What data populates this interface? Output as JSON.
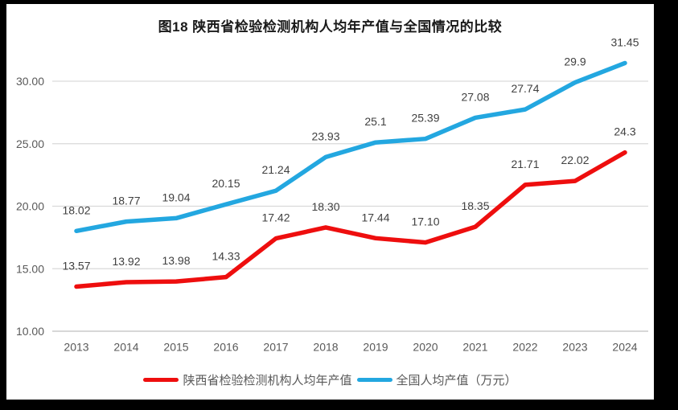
{
  "window": {
    "frame_color": "#000000",
    "panel_color": "#ffffff"
  },
  "chart_data": {
    "type": "line",
    "title": "图18 陕西省检验检测机构人均年产值与全国情况的比较",
    "categories": [
      "2013",
      "2014",
      "2015",
      "2016",
      "2017",
      "2018",
      "2019",
      "2020",
      "2021",
      "2022",
      "2023",
      "2024"
    ],
    "series": [
      {
        "name": "陕西省检验检测机构人均年产值",
        "color": "#ee0e0e",
        "values": [
          13.57,
          13.92,
          13.98,
          14.33,
          17.42,
          18.3,
          17.44,
          17.1,
          18.35,
          21.71,
          22.02,
          24.3
        ],
        "labels": [
          "13.57",
          "13.92",
          "13.98",
          "14.33",
          "17.42",
          "18.30",
          "17.44",
          "17.10",
          "18.35",
          "21.71",
          "22.02",
          "24.3"
        ]
      },
      {
        "name": "全国人均产值（万元）",
        "color": "#23a7e0",
        "values": [
          18.02,
          18.77,
          19.04,
          20.15,
          21.24,
          23.93,
          25.1,
          25.39,
          27.08,
          27.74,
          29.9,
          31.45
        ],
        "labels": [
          "18.02",
          "18.77",
          "19.04",
          "20.15",
          "21.24",
          "23.93",
          "25.1",
          "25.39",
          "27.08",
          "27.74",
          "29.9",
          "31.45"
        ]
      }
    ],
    "y_axis": {
      "min": 10,
      "max": 32.5,
      "tick_values": [
        10,
        15,
        20,
        25,
        30
      ],
      "ticks": [
        "10.00",
        "15.00",
        "20.00",
        "25.00",
        "30.00"
      ]
    },
    "grid": true,
    "legend_position": "bottom",
    "colors": {
      "grid": "#d9d9d9",
      "axis_line": "#bfbfbf",
      "tick_text": "#595959",
      "data_label": "#404040",
      "title_text": "#1a1a1a"
    }
  }
}
